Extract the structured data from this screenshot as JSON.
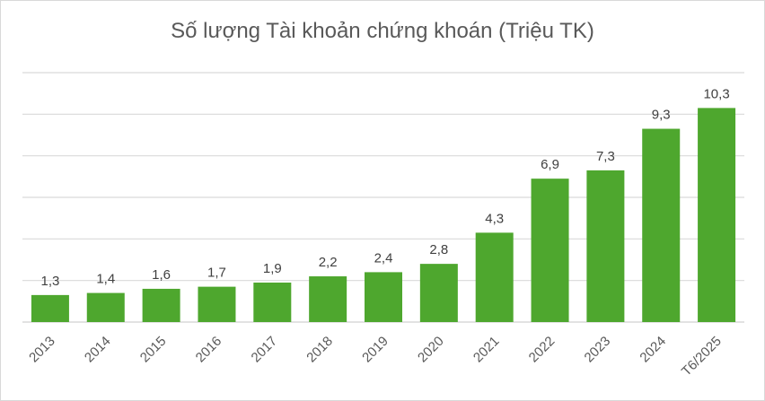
{
  "chart_data": {
    "type": "bar",
    "title": "Số lượng Tài khoản chứng khoán (Triệu TK)",
    "categories": [
      "2013",
      "2014",
      "2015",
      "2016",
      "2017",
      "2018",
      "2019",
      "2020",
      "2021",
      "2022",
      "2023",
      "2024",
      "T6/2025"
    ],
    "values": [
      1.3,
      1.4,
      1.6,
      1.7,
      1.9,
      2.2,
      2.4,
      2.8,
      4.3,
      6.9,
      7.3,
      9.3,
      10.3
    ],
    "data_labels": [
      "1,3",
      "1,4",
      "1,6",
      "1,7",
      "1,9",
      "2,2",
      "2,4",
      "2,8",
      "4,3",
      "6,9",
      "7,3",
      "9,3",
      "10,3"
    ],
    "xlabel": "",
    "ylabel": "",
    "ylim": [
      0,
      12
    ],
    "grid": true,
    "grid_step": 2,
    "y_tick_labels_shown": false,
    "bar_color": "#4ea72e",
    "grid_color": "#d9d9d9"
  }
}
